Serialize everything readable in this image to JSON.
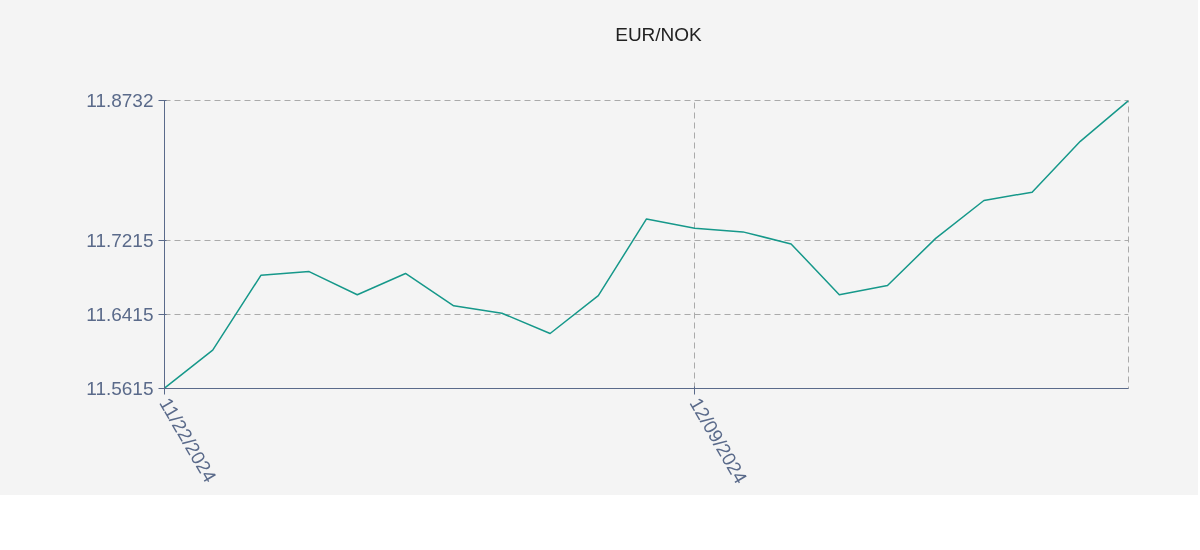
{
  "chart_data": {
    "type": "line",
    "categories": [
      "11/22/2024",
      null,
      null,
      null,
      null,
      null,
      null,
      null,
      null,
      null,
      null,
      "12/09/2024",
      null,
      null,
      null,
      null,
      null,
      null,
      null,
      null,
      null
    ],
    "series": [
      {
        "name": "EUR/NOK",
        "color": "#16988a",
        "values": [
          11.562,
          11.603,
          11.684,
          11.688,
          11.663,
          11.686,
          11.651,
          11.643,
          11.621,
          11.662,
          11.745,
          11.735,
          11.731,
          11.718,
          11.663,
          11.673,
          11.724,
          11.765,
          11.774,
          11.829,
          11.873
        ]
      }
    ],
    "ylim": [
      11.5615,
      11.8732
    ],
    "yticks": [
      11.5615,
      11.6415,
      11.7215,
      11.8732
    ],
    "grid": true,
    "legend": "top"
  }
}
